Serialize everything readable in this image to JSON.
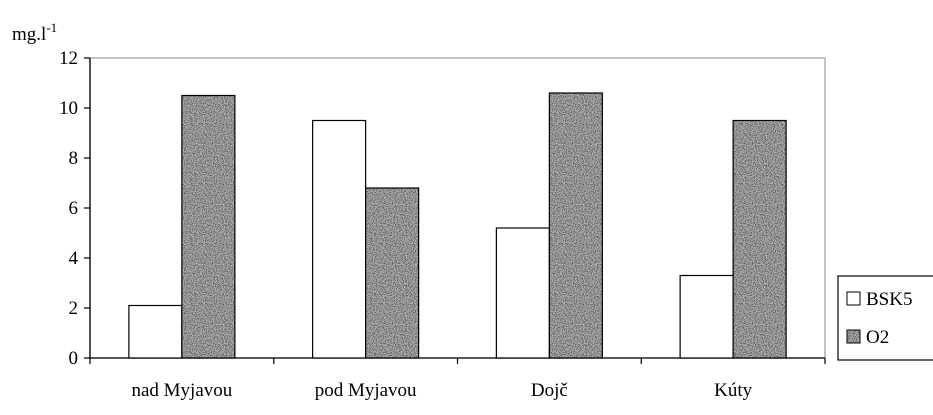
{
  "chart_data": {
    "type": "bar",
    "ylabel": "mg.l",
    "ylabel_superscript": "-1",
    "categories": [
      "nad Myjavou",
      "pod Myjavou",
      "Dojč",
      "Kúty"
    ],
    "series": [
      {
        "name": "BSK5",
        "values": [
          2.1,
          9.5,
          5.2,
          3.3
        ],
        "color": "#ffffff"
      },
      {
        "name": "O2",
        "values": [
          10.5,
          6.8,
          10.6,
          9.5
        ],
        "color": "#9a9a9a",
        "pattern": "speckled-gray"
      }
    ],
    "ylim": [
      0,
      12
    ],
    "yticks": [
      "0",
      "2",
      "4",
      "6",
      "8",
      "10",
      "12"
    ],
    "grid": false,
    "legend_position": "right"
  }
}
